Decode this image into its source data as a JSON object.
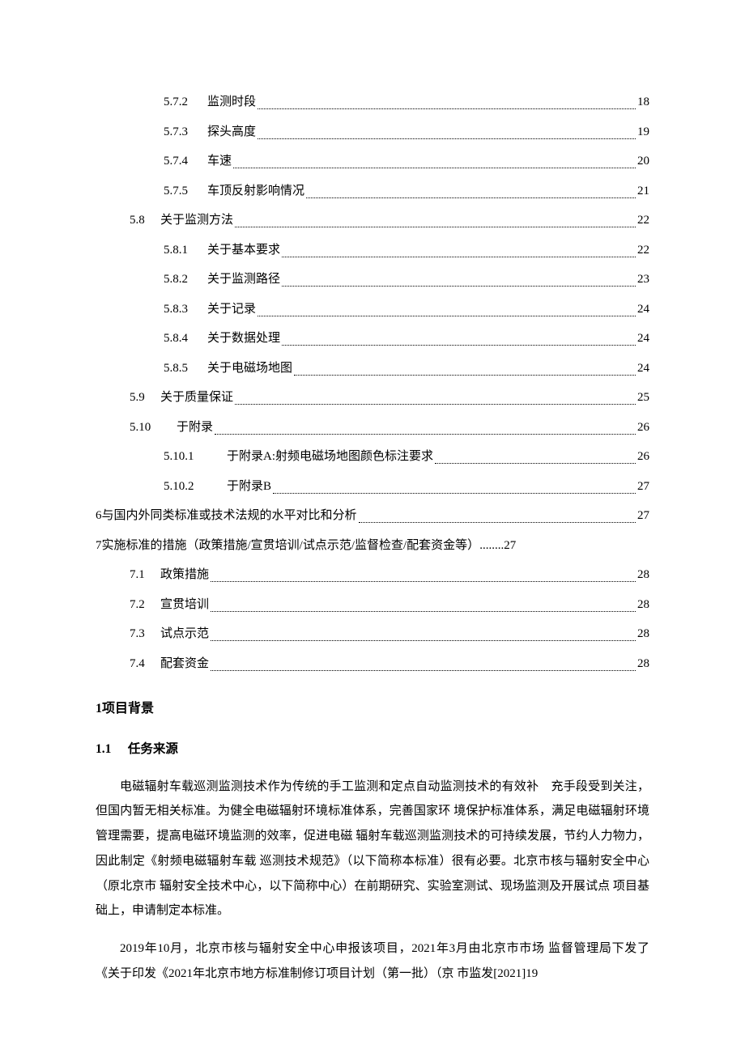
{
  "toc": [
    {
      "level": "l3",
      "num": "5.7.2",
      "title": "监测时段",
      "page": "18",
      "numcls": "num-l3"
    },
    {
      "level": "l3",
      "num": "5.7.3",
      "title": "探头高度",
      "page": "19",
      "numcls": "num-l3"
    },
    {
      "level": "l3",
      "num": "5.7.4",
      "title": "车速",
      "page": "20",
      "numcls": "num-l3"
    },
    {
      "level": "l3",
      "num": "5.7.5",
      "title": "车顶反射影响情况",
      "page": "21",
      "numcls": "num-l3"
    },
    {
      "level": "l2",
      "num": "5.8",
      "title": "关于监测方法",
      "page": "22",
      "numcls": "num-l2"
    },
    {
      "level": "l3",
      "num": "5.8.1",
      "title": "关于基本要求",
      "page": "22",
      "numcls": "num-l3"
    },
    {
      "level": "l3",
      "num": "5.8.2",
      "title": "关于监测路径",
      "page": "23",
      "numcls": "num-l3"
    },
    {
      "level": "l3",
      "num": "5.8.3",
      "title": "关于记录",
      "page": "24",
      "numcls": "num-l3"
    },
    {
      "level": "l3",
      "num": "5.8.4",
      "title": "关于数据处理",
      "page": "24",
      "numcls": "num-l3"
    },
    {
      "level": "l3",
      "num": "5.8.5",
      "title": "关于电磁场地图",
      "page": "24",
      "numcls": "num-l3"
    },
    {
      "level": "l2",
      "num": "5.9",
      "title": "关于质量保证",
      "page": "25",
      "numcls": "num-l2"
    },
    {
      "level": "l2",
      "num": "5.10",
      "title": "于附录",
      "page": "26",
      "numcls": "num-l2w"
    },
    {
      "level": "l3",
      "num": "5.10.1",
      "title": "于附录A:射频电磁场地图颜色标注要求",
      "page": "26",
      "numcls": "num-l3w"
    },
    {
      "level": "l3",
      "num": "5.10.2",
      "title": "于附录B",
      "page": "27",
      "numcls": "num-l3w",
      "thin": true
    },
    {
      "level": "l1",
      "num": "",
      "title": "6与国内外同类标准或技术法规的水平对比和分析",
      "page": "27",
      "numcls": ""
    },
    {
      "level": "l1",
      "num": "",
      "title": "7实施标准的措施（政策措施/宣贯培训/试点示范/监督检查/配套资金等）",
      "page": "",
      "numcls": "",
      "tail": "........27"
    },
    {
      "level": "l2",
      "num": "7.1",
      "title": "政策措施",
      "page": "28",
      "numcls": "num-l2"
    },
    {
      "level": "l2",
      "num": "7.2",
      "title": "宣贯培训",
      "page": "28",
      "numcls": "num-l2"
    },
    {
      "level": "l2",
      "num": "7.3",
      "title": "试点示范",
      "page": "28",
      "numcls": "num-l2"
    },
    {
      "level": "l2",
      "num": "7.4",
      "title": "配套资金",
      "page": "28",
      "numcls": "num-l2"
    }
  ],
  "heading1": "1项目背景",
  "heading2_num": "1.1",
  "heading2_title": "任务来源",
  "para1": "电磁辐射车载巡测监测技术作为传统的手工监测和定点自动监测技术的有效补　充手段受到关注，但国内暂无相关标准。为健全电磁辐射环境标准体系，完善国家环 境保护标准体系，满足电磁辐射环境管理需要，提高电磁环境监测的效率，促进电磁 辐射车载巡测监测技术的可持续发展，节约人力物力，因此制定《射频电磁辐射车载 巡测技术规范》（以下简称本标准）很有必要。北京市核与辐射安全中心（原北京市 辐射安全技术中心，以下简称中心）在前期研究、实验室测试、现场监测及开展试点 项目基础上，申请制定本标准。",
  "para2": "2019年10月，北京市核与辐射安全中心申报该项目，2021年3月由北京市市场 监督管理局下发了《关于印发《2021年北京市地方标准制修订项目计划（第一批）（京 市监发[2021]19"
}
